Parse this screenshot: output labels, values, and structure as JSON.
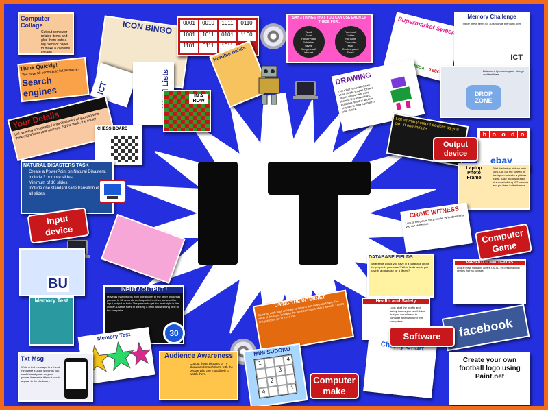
{
  "title": "IT",
  "badges": {
    "input_device": "Input\ndevice",
    "output_device": "Output\ndevice",
    "computer_game": "Computer\nGame",
    "software": "Software",
    "computer_make": "Computer\nmake"
  },
  "cards": {
    "computer_collage": {
      "title": "Computer Collage",
      "text": "Cut out computer related items and glue them onto a big piece of paper to make a colourful collage."
    },
    "icon_bingo": {
      "title": "ICON BINGO"
    },
    "binary": {
      "cells": [
        "0001",
        "0010",
        "1011",
        "0110",
        "1001",
        "1011",
        "0101",
        "1100",
        "1101",
        "0111",
        "1011"
      ]
    },
    "say3": {
      "title": "SAY 3 THINGS THAT YOU CAN USE EACH OF THESE FOR...",
      "left": [
        "Word",
        "Excel",
        "PowerPoint",
        "Publisher",
        "Skype",
        "Google earth",
        "Internet",
        "Paint"
      ],
      "right": [
        "Facebook",
        "Twitter",
        "YouTube",
        "Character",
        "Map",
        "Control panel",
        "Email"
      ]
    },
    "supermarket": {
      "title": "Supermarket Sweep"
    },
    "memory_challenge": {
      "title": "Memory Challenge",
      "text": "Study these items for 30 seconds then turn over"
    },
    "think_quickly": {
      "title": "Think Quickly!",
      "text": "You have 30 seconds to list as many...",
      "big": "Search engines"
    },
    "ict": "ICT",
    "word_lists": "Word Lists",
    "horrible_habits": {
      "title": "Horrible Habits"
    },
    "in_a_row": {
      "text": "IN A ROW"
    },
    "drawing": {
      "title": "DRAWING",
      "text": "This robot has been drawn using simple shapes. Draw a picture of your own using shapes. Use PowerPoint, Publisher, Word or another program to draw a picture of your choice."
    },
    "drop_zone": {
      "title": "DROP ZONE",
      "text": "Balance a 1p on computer strings and test them"
    },
    "your_details": {
      "title": "Your Details",
      "text": "List as many companies / organisations that you can who think might have your address. Eg the bank, the doctor"
    },
    "chess_board": {
      "title": "CHESS BOARD"
    },
    "output_card": {
      "text": "List as many output devices as you can in one minute"
    },
    "logos": {
      "letters": [
        "h",
        "o",
        "o",
        "d",
        "o"
      ]
    },
    "natural_disasters": {
      "title": "NATURAL DISASTERS TASK",
      "items": [
        "Create a PowerPoint on Natural Disasters.",
        "Include 3 or more slides.",
        "Minimum of 10 slides.",
        "Include one standard slide transition effect for all slides."
      ]
    },
    "laptop_frame": {
      "title": "Laptop Photo Frame",
      "text": "Print the laptop picture onto card. Cut out the screen of the laptop to make a picture frame. Take photos of each other each doing ICT lessons and put them in the frames."
    },
    "crime_witness": {
      "title": "CRIME WITNESS",
      "text": "Look at the picture for 1 minute. Write down what you can remember."
    },
    "database_fields": {
      "title": "DATABASE FIELDS",
      "text": "What fields would you have in a database about the people in your class? What fields would you have in a database for a library?"
    },
    "presentational": {
      "title": "PRESENTATIONAL DEVICES",
      "text": "Look at these magazine covers. List ALL the presentational devices that you can see."
    },
    "input_output": {
      "title": "INPUT / OUTPUT !",
      "text": "Move as many words from one bucket to the other bucket as you can in 30 seconds and say whether they are used for input, output or both. The person to get the most right is the winner. List the rules of drinking a drink whilst sitting next to the computer."
    },
    "use_internet": {
      "title": "USING THE INTERNET",
      "text": "Go round each pupil and each to throw a dart on the dartboard. The value of the score indicates the number of points that it is worth. List the first person to get to 4 in a row."
    },
    "health_safety": {
      "title": "Health and Safety",
      "text": "Look at all the health and safety issues you can think of that you would need to consider when working with computers."
    },
    "memory_test": {
      "title": "Memory Test"
    },
    "memory_test2": {
      "title": "Memory Test"
    },
    "thirty": "30",
    "audience": {
      "title": "Audience Awareness",
      "text": "Cut out these pictures of TV shows and match them with the people who are most likely to watch them."
    },
    "sudoku": {
      "title": "MINI SUDOKU",
      "grid": [
        "1",
        "",
        "",
        "4",
        "",
        "",
        "3",
        "",
        "",
        "2",
        "",
        "",
        "4",
        "",
        "",
        "1"
      ]
    },
    "charity": {
      "title": "Charity Chart"
    },
    "txt_msg": {
      "title": "Txt Msg",
      "text": "Write a text message to a friend. First write it using spellings you would usually use on your phone, then write it how it would appear in the dictionary."
    },
    "facebook": "facebook",
    "football_logo": {
      "text": "Create your own football logo using Paint.net"
    },
    "asda": "ASDA",
    "tesco": "TESCO",
    "ebay": "ebay",
    "bu": "BU",
    "ict2": "ICT"
  }
}
